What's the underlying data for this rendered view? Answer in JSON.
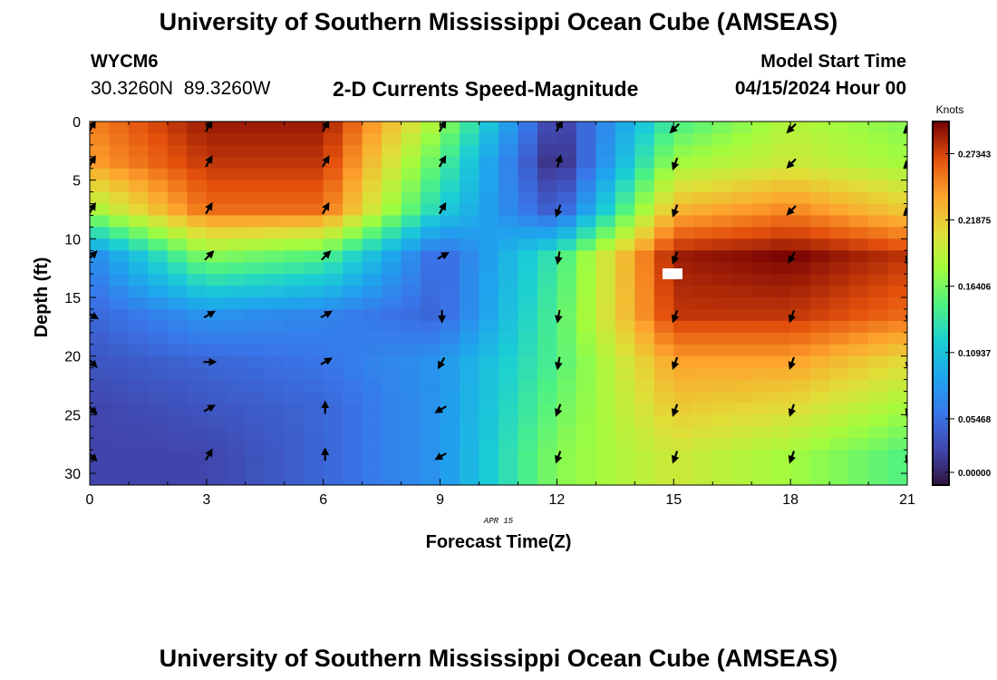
{
  "title": "University of Southern Mississippi Ocean Cube (AMSEAS)",
  "footer_title": "University of Southern Mississippi Ocean Cube (AMSEAS)",
  "station": {
    "id": "WYCM6",
    "coords": "30.3260N  89.3260W"
  },
  "plot_title": "2-D Currents Speed-Magnitude",
  "model": {
    "label": "Model Start Time",
    "time": "04/15/2024 Hour 00"
  },
  "chart_data": {
    "type": "heatmap",
    "title": "2-D Currents Speed-Magnitude",
    "xlabel": "Forecast Time(Z)",
    "ylabel": "Depth (ft)",
    "date_label": "APR 15",
    "x_ticks": [
      0,
      3,
      6,
      9,
      12,
      15,
      18,
      21
    ],
    "y_ticks": [
      0,
      5,
      10,
      15,
      20,
      25,
      30
    ],
    "xlim": [
      0,
      21
    ],
    "ylim": [
      0,
      31
    ],
    "colorbar": {
      "label": "Knots",
      "min": 0,
      "max": 0.3,
      "ticks": [
        0.0,
        0.05468,
        0.10937,
        0.16406,
        0.21875,
        0.27343
      ],
      "tick_labels": [
        "0.00000",
        "0.05468",
        "0.10937",
        "0.16406",
        "0.21875",
        "0.27343"
      ]
    },
    "speed_knots": {
      "rows_depth_ft": [
        0.5,
        3.5,
        7.5,
        11.5,
        16.5,
        20.5,
        24.5,
        28.5
      ],
      "cols_hour": [
        0,
        3,
        6,
        9,
        12,
        15,
        18,
        21
      ],
      "values": [
        [
          0.25,
          0.29,
          0.29,
          0.175,
          0.02,
          0.15,
          0.19,
          0.17
        ],
        [
          0.24,
          0.28,
          0.28,
          0.15,
          0.01,
          0.18,
          0.2,
          0.18
        ],
        [
          0.18,
          0.26,
          0.26,
          0.12,
          0.04,
          0.23,
          0.25,
          0.22
        ],
        [
          0.07,
          0.17,
          0.15,
          0.05,
          0.14,
          0.29,
          0.3,
          0.28
        ],
        [
          0.05,
          0.08,
          0.07,
          0.05,
          0.15,
          0.28,
          0.28,
          0.26
        ],
        [
          0.04,
          0.05,
          0.06,
          0.08,
          0.15,
          0.24,
          0.24,
          0.21
        ],
        [
          0.03,
          0.04,
          0.05,
          0.08,
          0.16,
          0.22,
          0.21,
          0.18
        ],
        [
          0.03,
          0.03,
          0.05,
          0.08,
          0.17,
          0.2,
          0.18,
          0.15
        ]
      ]
    },
    "vectors": {
      "direction_deg": [
        [
          30,
          30,
          30,
          30,
          30,
          225,
          225,
          225
        ],
        [
          30,
          30,
          30,
          30,
          15,
          200,
          225,
          225
        ],
        [
          30,
          30,
          30,
          30,
          200,
          200,
          225,
          225
        ],
        [
          45,
          45,
          45,
          60,
          190,
          200,
          210,
          200
        ],
        [
          120,
          60,
          60,
          180,
          190,
          200,
          200,
          190
        ],
        [
          135,
          90,
          60,
          210,
          190,
          200,
          200,
          190
        ],
        [
          135,
          60,
          0,
          240,
          200,
          200,
          200,
          200
        ],
        [
          135,
          30,
          0,
          240,
          200,
          200,
          200,
          200
        ]
      ]
    }
  }
}
